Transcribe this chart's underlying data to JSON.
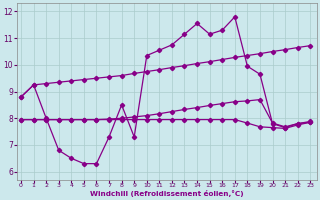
{
  "xlabel": "Windchill (Refroidissement éolien,°C)",
  "bg_color": "#cce8ec",
  "grid_color": "#aacccc",
  "line_color": "#880088",
  "x_ticks": [
    0,
    1,
    2,
    3,
    4,
    5,
    6,
    7,
    8,
    9,
    10,
    11,
    12,
    13,
    14,
    15,
    16,
    17,
    18,
    19,
    20,
    21,
    22,
    23
  ],
  "y_ticks": [
    6,
    7,
    8,
    9,
    10,
    11,
    12
  ],
  "ylim": [
    5.7,
    12.3
  ],
  "xlim": [
    -0.3,
    23.5
  ],
  "line1_x": [
    0,
    1,
    2,
    3,
    4,
    5,
    6,
    7,
    8,
    9,
    10,
    11,
    12,
    13,
    14,
    15,
    16,
    17,
    18,
    19,
    20,
    21,
    22,
    23
  ],
  "line1_y": [
    8.8,
    9.25,
    9.3,
    9.35,
    9.4,
    9.45,
    9.5,
    9.55,
    9.6,
    9.68,
    9.75,
    9.82,
    9.9,
    9.97,
    10.05,
    10.12,
    10.2,
    10.28,
    10.35,
    10.42,
    10.5,
    10.57,
    10.65,
    10.72
  ],
  "line2_x": [
    0,
    1,
    2,
    3,
    4,
    5,
    6,
    7,
    8,
    9,
    10,
    11,
    12,
    13,
    14,
    15,
    16,
    17,
    18,
    19,
    20,
    21,
    22,
    23
  ],
  "line2_y": [
    8.8,
    9.25,
    8.0,
    6.8,
    6.5,
    6.3,
    6.3,
    7.3,
    8.5,
    7.3,
    10.35,
    10.55,
    10.75,
    11.15,
    11.55,
    11.15,
    11.3,
    11.8,
    9.95,
    9.65,
    7.8,
    7.65,
    7.8,
    7.85
  ],
  "line3_x": [
    0,
    1,
    2,
    3,
    4,
    5,
    6,
    7,
    8,
    9,
    10,
    11,
    12,
    13,
    14,
    15,
    16,
    17,
    18,
    19,
    20,
    21,
    22,
    23
  ],
  "line3_y": [
    7.95,
    7.95,
    7.95,
    7.95,
    7.95,
    7.95,
    7.95,
    7.97,
    8.0,
    8.05,
    8.1,
    8.17,
    8.25,
    8.33,
    8.4,
    8.48,
    8.55,
    8.62,
    8.65,
    8.7,
    7.82,
    7.68,
    7.8,
    7.88
  ],
  "line4_x": [
    0,
    1,
    2,
    3,
    4,
    5,
    6,
    7,
    8,
    9,
    10,
    11,
    12,
    13,
    14,
    15,
    16,
    17,
    18,
    19,
    20,
    21,
    22,
    23
  ],
  "line4_y": [
    7.95,
    7.95,
    7.95,
    7.95,
    7.95,
    7.95,
    7.95,
    7.95,
    7.95,
    7.95,
    7.95,
    7.95,
    7.95,
    7.95,
    7.95,
    7.95,
    7.95,
    7.95,
    7.82,
    7.68,
    7.65,
    7.62,
    7.75,
    7.85
  ]
}
